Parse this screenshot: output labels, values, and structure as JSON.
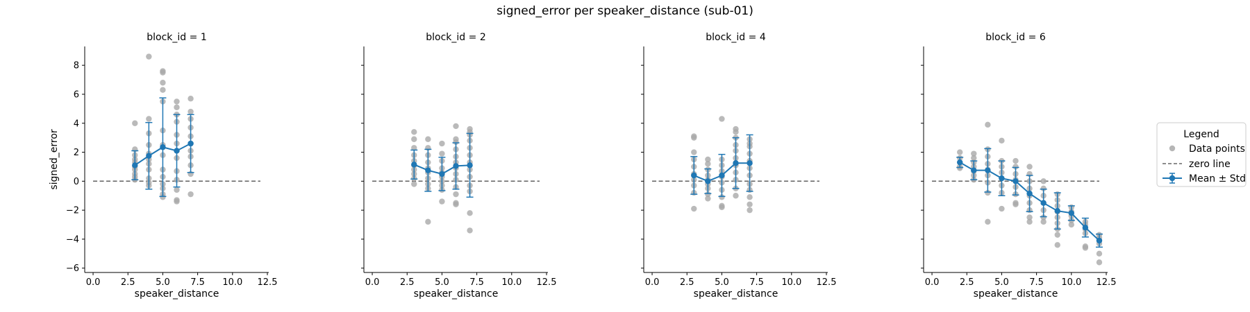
{
  "figure": {
    "title": "signed_error per speaker_distance (sub-01)"
  },
  "legend": {
    "title": "Legend",
    "items": [
      "Data points",
      "zero line",
      "Mean ± Std"
    ]
  },
  "colors": {
    "points": "#a9a9a9",
    "mean": "#1f77b4",
    "zero_line": "#666666",
    "axis": "#000000"
  },
  "chart_data": [
    {
      "type": "scatter",
      "title": "block_id = 1",
      "xlabel": "speaker_distance",
      "ylabel": "signed_error",
      "xlim": [
        -0.6,
        12.6
      ],
      "ylim": [
        -6.3,
        9.3
      ],
      "xticks": [
        0.0,
        2.5,
        5.0,
        7.5,
        10.0,
        12.5
      ],
      "yticks": [
        -6,
        -4,
        -2,
        0,
        2,
        4,
        6,
        8
      ],
      "zero_line": {
        "x": [
          0,
          12
        ],
        "y": 0
      },
      "points": [
        [
          3,
          4.0
        ],
        [
          3,
          2.2
        ],
        [
          3,
          1.8
        ],
        [
          3,
          1.5
        ],
        [
          3,
          1.3
        ],
        [
          3,
          1.0
        ],
        [
          3,
          0.8
        ],
        [
          3,
          0.5
        ],
        [
          3,
          0.3
        ],
        [
          3,
          0.1
        ],
        [
          4,
          8.6
        ],
        [
          4,
          4.3
        ],
        [
          4,
          3.3
        ],
        [
          4,
          2.5
        ],
        [
          4,
          1.9
        ],
        [
          4,
          1.5
        ],
        [
          4,
          1.2
        ],
        [
          4,
          0.8
        ],
        [
          4,
          0.2
        ],
        [
          4,
          -0.1
        ],
        [
          4,
          -0.3
        ],
        [
          5,
          7.6
        ],
        [
          5,
          7.5
        ],
        [
          5,
          6.8
        ],
        [
          5,
          6.3
        ],
        [
          5,
          5.5
        ],
        [
          5,
          3.5
        ],
        [
          5,
          2.5
        ],
        [
          5,
          1.8
        ],
        [
          5,
          0.8
        ],
        [
          5,
          0.3
        ],
        [
          5,
          -0.2
        ],
        [
          5,
          -0.5
        ],
        [
          5,
          -0.9
        ],
        [
          5,
          -1.1
        ],
        [
          6,
          5.5
        ],
        [
          6,
          5.1
        ],
        [
          6,
          4.6
        ],
        [
          6,
          4.1
        ],
        [
          6,
          3.2
        ],
        [
          6,
          2.6
        ],
        [
          6,
          2.1
        ],
        [
          6,
          1.6
        ],
        [
          6,
          0.7
        ],
        [
          6,
          0.1
        ],
        [
          6,
          -0.6
        ],
        [
          6,
          -1.3
        ],
        [
          6,
          -1.4
        ],
        [
          7,
          5.7
        ],
        [
          7,
          4.8
        ],
        [
          7,
          4.3
        ],
        [
          7,
          3.7
        ],
        [
          7,
          3.1
        ],
        [
          7,
          2.6
        ],
        [
          7,
          2.1
        ],
        [
          7,
          1.7
        ],
        [
          7,
          1.1
        ],
        [
          7,
          0.5
        ],
        [
          7,
          -0.9
        ]
      ],
      "series": [
        {
          "name": "Mean ± Std",
          "x": [
            3,
            4,
            5,
            6,
            7
          ],
          "mean": [
            1.1,
            1.75,
            2.35,
            2.1,
            2.6
          ],
          "std": [
            1.0,
            2.3,
            3.4,
            2.5,
            2.0
          ]
        }
      ]
    },
    {
      "type": "scatter",
      "title": "block_id = 2",
      "xlabel": "speaker_distance",
      "ylabel": "",
      "xlim": [
        -0.6,
        12.6
      ],
      "ylim": [
        -6.3,
        9.3
      ],
      "xticks": [
        0.0,
        2.5,
        5.0,
        7.5,
        10.0,
        12.5
      ],
      "yticks": [
        -6,
        -4,
        -2,
        0,
        2,
        4,
        6,
        8
      ],
      "zero_line": {
        "x": [
          0,
          12
        ],
        "y": 0
      },
      "points": [
        [
          3,
          3.4
        ],
        [
          3,
          2.9
        ],
        [
          3,
          2.3
        ],
        [
          3,
          1.8
        ],
        [
          3,
          1.4
        ],
        [
          3,
          1.1
        ],
        [
          3,
          0.8
        ],
        [
          3,
          0.5
        ],
        [
          3,
          0.2
        ],
        [
          3,
          -0.2
        ],
        [
          4,
          2.9
        ],
        [
          4,
          2.3
        ],
        [
          4,
          1.8
        ],
        [
          4,
          1.3
        ],
        [
          4,
          0.9
        ],
        [
          4,
          0.6
        ],
        [
          4,
          0.2
        ],
        [
          4,
          -0.2
        ],
        [
          4,
          -0.5
        ],
        [
          4,
          -2.8
        ],
        [
          5,
          2.6
        ],
        [
          5,
          1.9
        ],
        [
          5,
          1.4
        ],
        [
          5,
          0.9
        ],
        [
          5,
          0.6
        ],
        [
          5,
          0.3
        ],
        [
          5,
          0.0
        ],
        [
          5,
          -0.3
        ],
        [
          5,
          -0.6
        ],
        [
          5,
          -1.4
        ],
        [
          6,
          3.8
        ],
        [
          6,
          2.9
        ],
        [
          6,
          2.7
        ],
        [
          6,
          2.2
        ],
        [
          6,
          1.7
        ],
        [
          6,
          1.3
        ],
        [
          6,
          0.9
        ],
        [
          6,
          0.5
        ],
        [
          6,
          0.1
        ],
        [
          6,
          -0.4
        ],
        [
          6,
          -0.9
        ],
        [
          6,
          -1.5
        ],
        [
          6,
          -1.6
        ],
        [
          7,
          3.6
        ],
        [
          7,
          3.4
        ],
        [
          7,
          3.2
        ],
        [
          7,
          2.8
        ],
        [
          7,
          2.3
        ],
        [
          7,
          1.8
        ],
        [
          7,
          1.3
        ],
        [
          7,
          0.8
        ],
        [
          7,
          0.3
        ],
        [
          7,
          -0.3
        ],
        [
          7,
          -0.7
        ],
        [
          7,
          -2.2
        ],
        [
          7,
          -3.4
        ]
      ],
      "series": [
        {
          "name": "Mean ± Std",
          "x": [
            3,
            4,
            5,
            6,
            7
          ],
          "mean": [
            1.15,
            0.75,
            0.5,
            1.05,
            1.1
          ],
          "std": [
            1.0,
            1.45,
            1.15,
            1.6,
            2.2
          ]
        }
      ]
    },
    {
      "type": "scatter",
      "title": "block_id = 4",
      "xlabel": "speaker_distance",
      "ylabel": "",
      "xlim": [
        -0.6,
        12.6
      ],
      "ylim": [
        -6.3,
        9.3
      ],
      "xticks": [
        0.0,
        2.5,
        5.0,
        7.5,
        10.0,
        12.5
      ],
      "yticks": [
        -6,
        -4,
        -2,
        0,
        2,
        4,
        6,
        8
      ],
      "zero_line": {
        "x": [
          0,
          12
        ],
        "y": 0
      },
      "points": [
        [
          3,
          3.1
        ],
        [
          3,
          3.0
        ],
        [
          3,
          2.0
        ],
        [
          3,
          1.5
        ],
        [
          3,
          1.0
        ],
        [
          3,
          0.5
        ],
        [
          3,
          0.1
        ],
        [
          3,
          -0.3
        ],
        [
          3,
          -0.8
        ],
        [
          3,
          -1.9
        ],
        [
          4,
          1.5
        ],
        [
          4,
          1.2
        ],
        [
          4,
          0.8
        ],
        [
          4,
          0.4
        ],
        [
          4,
          0.1
        ],
        [
          4,
          -0.2
        ],
        [
          4,
          -0.5
        ],
        [
          4,
          -0.9
        ],
        [
          4,
          -1.2
        ],
        [
          5,
          4.3
        ],
        [
          5,
          1.5
        ],
        [
          5,
          1.1
        ],
        [
          5,
          0.7
        ],
        [
          5,
          0.3
        ],
        [
          5,
          -0.1
        ],
        [
          5,
          -0.6
        ],
        [
          5,
          -1.1
        ],
        [
          5,
          -1.7
        ],
        [
          5,
          -1.8
        ],
        [
          6,
          3.6
        ],
        [
          6,
          3.4
        ],
        [
          6,
          3.0
        ],
        [
          6,
          2.5
        ],
        [
          6,
          2.1
        ],
        [
          6,
          1.6
        ],
        [
          6,
          1.1
        ],
        [
          6,
          0.6
        ],
        [
          6,
          0.1
        ],
        [
          6,
          -0.5
        ],
        [
          6,
          -1.0
        ],
        [
          7,
          2.9
        ],
        [
          7,
          2.6
        ],
        [
          7,
          2.4
        ],
        [
          7,
          1.9
        ],
        [
          7,
          1.4
        ],
        [
          7,
          0.9
        ],
        [
          7,
          0.4
        ],
        [
          7,
          -0.2
        ],
        [
          7,
          -0.6
        ],
        [
          7,
          -1.1
        ],
        [
          7,
          -1.6
        ],
        [
          7,
          -2.0
        ]
      ],
      "series": [
        {
          "name": "Mean ± Std",
          "x": [
            3,
            4,
            5,
            6,
            7
          ],
          "mean": [
            0.4,
            0.0,
            0.4,
            1.25,
            1.25
          ],
          "std": [
            1.3,
            0.85,
            1.45,
            1.75,
            1.95
          ]
        }
      ]
    },
    {
      "type": "scatter",
      "title": "block_id = 6",
      "xlabel": "speaker_distance",
      "ylabel": "",
      "xlim": [
        -0.6,
        12.6
      ],
      "ylim": [
        -6.3,
        9.3
      ],
      "xticks": [
        0.0,
        2.5,
        5.0,
        7.5,
        10.0,
        12.5
      ],
      "yticks": [
        -6,
        -4,
        -2,
        0,
        2,
        4,
        6,
        8
      ],
      "zero_line": {
        "x": [
          0,
          12
        ],
        "y": 0
      },
      "points": [
        [
          2,
          2.0
        ],
        [
          2,
          1.6
        ],
        [
          2,
          1.3
        ],
        [
          2,
          1.0
        ],
        [
          2,
          0.9
        ],
        [
          3,
          1.9
        ],
        [
          3,
          1.6
        ],
        [
          3,
          1.3
        ],
        [
          3,
          1.0
        ],
        [
          3,
          0.7
        ],
        [
          3,
          0.4
        ],
        [
          3,
          0.1
        ],
        [
          4,
          3.9
        ],
        [
          4,
          2.2
        ],
        [
          4,
          1.7
        ],
        [
          4,
          1.2
        ],
        [
          4,
          0.8
        ],
        [
          4,
          0.4
        ],
        [
          4,
          -0.1
        ],
        [
          4,
          -0.8
        ],
        [
          4,
          -2.8
        ],
        [
          5,
          2.8
        ],
        [
          5,
          1.4
        ],
        [
          5,
          1.0
        ],
        [
          5,
          0.6
        ],
        [
          5,
          0.2
        ],
        [
          5,
          -0.3
        ],
        [
          5,
          -0.8
        ],
        [
          5,
          -1.9
        ],
        [
          6,
          1.4
        ],
        [
          6,
          1.0
        ],
        [
          6,
          0.5
        ],
        [
          6,
          0.1
        ],
        [
          6,
          -0.4
        ],
        [
          6,
          -0.9
        ],
        [
          6,
          -1.5
        ],
        [
          6,
          -1.6
        ],
        [
          7,
          1.0
        ],
        [
          7,
          0.5
        ],
        [
          7,
          0.0
        ],
        [
          7,
          -0.5
        ],
        [
          7,
          -1.0
        ],
        [
          7,
          -1.5
        ],
        [
          7,
          -2.0
        ],
        [
          7,
          -2.5
        ],
        [
          7,
          -2.8
        ],
        [
          8,
          0.0
        ],
        [
          8,
          -0.5
        ],
        [
          8,
          -1.0
        ],
        [
          8,
          -1.5
        ],
        [
          8,
          -2.0
        ],
        [
          8,
          -2.5
        ],
        [
          8,
          -2.8
        ],
        [
          9,
          -0.9
        ],
        [
          9,
          -1.3
        ],
        [
          9,
          -1.7
        ],
        [
          9,
          -2.1
        ],
        [
          9,
          -2.5
        ],
        [
          9,
          -2.9
        ],
        [
          9,
          -3.3
        ],
        [
          9,
          -3.7
        ],
        [
          9,
          -4.4
        ],
        [
          10,
          -1.8
        ],
        [
          10,
          -2.1
        ],
        [
          10,
          -2.4
        ],
        [
          10,
          -2.7
        ],
        [
          10,
          -3.0
        ],
        [
          11,
          -2.8
        ],
        [
          11,
          -3.0
        ],
        [
          11,
          -3.3
        ],
        [
          11,
          -3.6
        ],
        [
          11,
          -4.5
        ],
        [
          11,
          -4.6
        ],
        [
          12,
          -3.7
        ],
        [
          12,
          -3.9
        ],
        [
          12,
          -4.1
        ],
        [
          12,
          -4.3
        ],
        [
          12,
          -5.0
        ],
        [
          12,
          -5.6
        ]
      ],
      "series": [
        {
          "name": "Mean ± Std",
          "x": [
            2,
            3,
            4,
            5,
            6,
            7,
            8,
            9,
            10,
            11,
            12
          ],
          "mean": [
            1.3,
            0.75,
            0.75,
            0.2,
            0.0,
            -0.85,
            -1.5,
            -2.05,
            -2.2,
            -3.2,
            -4.1
          ],
          "std": [
            0.35,
            0.65,
            1.5,
            1.2,
            0.95,
            1.25,
            0.95,
            1.25,
            0.5,
            0.65,
            0.45
          ]
        }
      ]
    }
  ]
}
